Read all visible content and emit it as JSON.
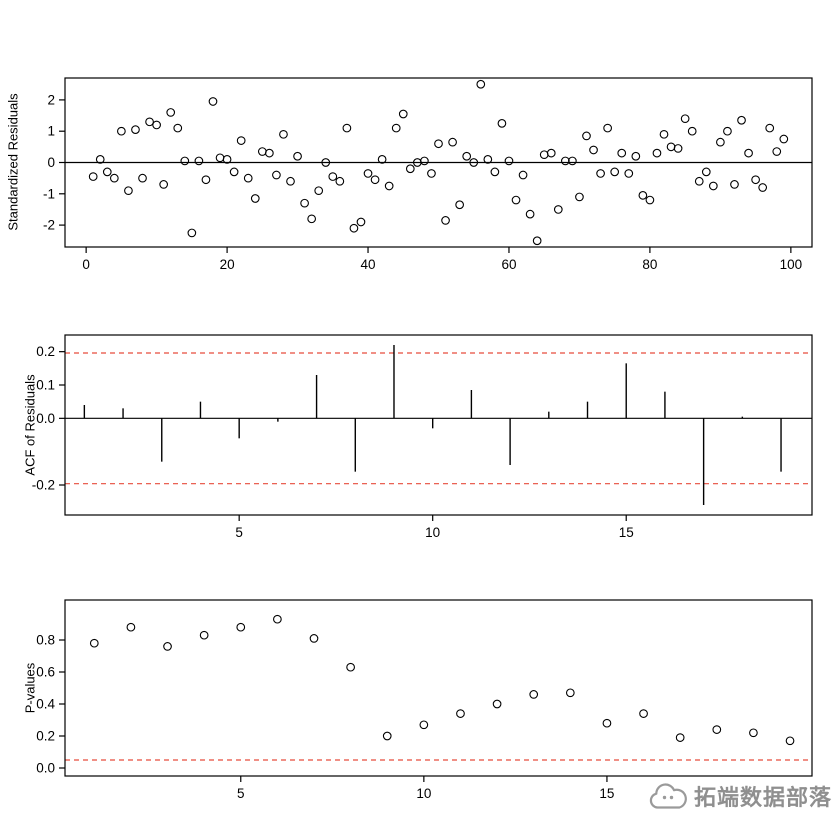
{
  "background": "#ffffff",
  "watermark": {
    "text": "拓端数据部落",
    "color": "#8f8f8f"
  },
  "colors": {
    "axis": "#000000",
    "reference_dashed": "#e74c3c"
  },
  "chart_data": [
    {
      "type": "scatter",
      "name": "standardized-residuals-plot",
      "title": "",
      "xlabel": "",
      "ylabel": "Standardized Residuals",
      "xlim": [
        -3,
        103
      ],
      "ylim": [
        -2.7,
        2.7
      ],
      "grid": false,
      "xticks": [
        {
          "v": 0,
          "l": "0"
        },
        {
          "v": 20,
          "l": "20"
        },
        {
          "v": 40,
          "l": "40"
        },
        {
          "v": 60,
          "l": "60"
        },
        {
          "v": 80,
          "l": "80"
        },
        {
          "v": 100,
          "l": "100"
        }
      ],
      "yticks": [
        {
          "v": -2,
          "l": "-2"
        },
        {
          "v": -1,
          "l": "-1"
        },
        {
          "v": 0,
          "l": "0"
        },
        {
          "v": 1,
          "l": "1"
        },
        {
          "v": 2,
          "l": "2"
        }
      ],
      "hlines": [
        {
          "y": 0,
          "style": "solid",
          "color": "#000000"
        }
      ],
      "x": [
        1,
        2,
        3,
        4,
        5,
        6,
        7,
        8,
        9,
        10,
        11,
        12,
        13,
        14,
        15,
        16,
        17,
        18,
        19,
        20,
        21,
        22,
        23,
        24,
        25,
        26,
        27,
        28,
        29,
        30,
        31,
        32,
        33,
        34,
        35,
        36,
        37,
        38,
        39,
        40,
        41,
        42,
        43,
        44,
        45,
        46,
        47,
        48,
        49,
        50,
        51,
        52,
        53,
        54,
        55,
        56,
        57,
        58,
        59,
        60,
        61,
        62,
        63,
        64,
        65,
        66,
        67,
        68,
        69,
        70,
        71,
        72,
        73,
        74,
        75,
        76,
        77,
        78,
        79,
        80,
        81,
        82,
        83,
        84,
        85,
        86,
        87,
        88,
        89,
        90,
        91,
        92,
        93,
        94,
        95,
        96,
        97,
        98,
        99
      ],
      "y": [
        -0.45,
        0.1,
        -0.3,
        -0.5,
        1.0,
        -0.9,
        1.05,
        -0.5,
        1.3,
        1.2,
        -0.7,
        1.6,
        1.1,
        0.05,
        -2.25,
        0.05,
        -0.55,
        1.95,
        0.15,
        0.1,
        -0.3,
        0.7,
        -0.5,
        -1.15,
        0.35,
        0.3,
        -0.4,
        0.9,
        -0.6,
        0.2,
        -1.3,
        -1.8,
        -0.9,
        0.0,
        -0.45,
        -0.6,
        1.1,
        -2.1,
        -1.9,
        -0.35,
        -0.55,
        0.1,
        -0.75,
        1.1,
        1.55,
        -0.2,
        0.0,
        0.05,
        -0.35,
        0.6,
        -1.85,
        0.65,
        -1.35,
        0.2,
        0.0,
        2.5,
        0.1,
        -0.3,
        1.25,
        0.05,
        -1.2,
        -0.4,
        -1.65,
        -2.5,
        0.25,
        0.3,
        -1.5,
        0.05,
        0.05,
        -1.1,
        0.85,
        0.4,
        -0.35,
        1.1,
        -0.3,
        0.3,
        -0.35,
        0.2,
        -1.05,
        -1.2,
        0.3,
        0.9,
        0.5,
        0.45,
        1.4,
        1.0,
        -0.6,
        -0.3,
        -0.75,
        0.65,
        1.0,
        -0.7,
        1.35,
        0.3,
        -0.55,
        -0.8,
        1.1,
        0.35,
        0.75
      ]
    },
    {
      "type": "bar",
      "name": "acf-of-residuals-plot",
      "title": "",
      "xlabel": "",
      "ylabel": "ACF of Residuals",
      "xlim": [
        0.5,
        19.8
      ],
      "ylim": [
        -0.29,
        0.25
      ],
      "grid": false,
      "xticks": [
        {
          "v": 5,
          "l": "5"
        },
        {
          "v": 10,
          "l": "10"
        },
        {
          "v": 15,
          "l": "15"
        }
      ],
      "yticks": [
        {
          "v": -0.2,
          "l": "-0.2"
        },
        {
          "v": 0,
          "l": "0.0"
        },
        {
          "v": 0.1,
          "l": "0.1"
        },
        {
          "v": 0.2,
          "l": "0.2"
        }
      ],
      "hlines": [
        {
          "y": 0,
          "style": "solid",
          "color": "#000000"
        },
        {
          "y": 0.196,
          "style": "dashed",
          "color": "#e74c3c"
        },
        {
          "y": -0.196,
          "style": "dashed",
          "color": "#e74c3c"
        }
      ],
      "x": [
        1,
        2,
        3,
        4,
        5,
        6,
        7,
        8,
        9,
        10,
        11,
        12,
        13,
        14,
        15,
        16,
        17,
        18,
        19
      ],
      "values": [
        0.04,
        0.03,
        -0.13,
        0.05,
        -0.06,
        -0.01,
        0.13,
        -0.16,
        0.22,
        -0.03,
        0.085,
        -0.14,
        0.02,
        0.05,
        0.165,
        0.08,
        -0.26,
        0.005,
        -0.16
      ]
    },
    {
      "type": "scatter",
      "name": "p-values-plot",
      "title": "",
      "xlabel": "",
      "ylabel": "P-values",
      "xlim": [
        0.2,
        20.6
      ],
      "ylim": [
        -0.05,
        1.05
      ],
      "grid": false,
      "xticks": [
        {
          "v": 5,
          "l": "5"
        },
        {
          "v": 10,
          "l": "10"
        },
        {
          "v": 15,
          "l": "15"
        }
      ],
      "yticks": [
        {
          "v": 0,
          "l": "0.0"
        },
        {
          "v": 0.2,
          "l": "0.2"
        },
        {
          "v": 0.4,
          "l": "0.4"
        },
        {
          "v": 0.6,
          "l": "0.6"
        },
        {
          "v": 0.8,
          "l": "0.8"
        }
      ],
      "hlines": [
        {
          "y": 0.05,
          "style": "dashed",
          "color": "#e74c3c"
        }
      ],
      "x": [
        1,
        2,
        3,
        4,
        5,
        6,
        7,
        8,
        9,
        10,
        11,
        12,
        13,
        14,
        15,
        16,
        17,
        18,
        19,
        20
      ],
      "y": [
        0.78,
        0.88,
        0.76,
        0.83,
        0.88,
        0.93,
        0.81,
        0.63,
        0.2,
        0.27,
        0.34,
        0.4,
        0.46,
        0.47,
        0.28,
        0.34,
        0.19,
        0.24,
        0.22,
        0.17
      ]
    }
  ]
}
